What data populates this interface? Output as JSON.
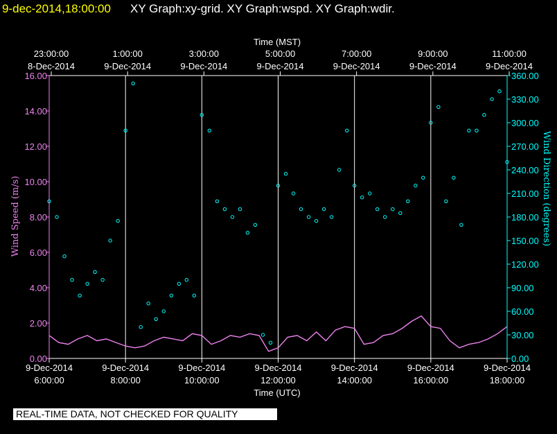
{
  "header": {
    "date": "9-dec-2014,18:00:00",
    "graphs": "XY Graph:xy-grid.  XY Graph:wspd.  XY Graph:wdir."
  },
  "disclaimer": "REAL-TIME DATA, NOT CHECKED FOR QUALITY",
  "chart_data": {
    "type": "scatter",
    "top_axis": {
      "title": "Time (MST)",
      "ticks": [
        {
          "t": "23:00:00",
          "d": "8-Dec-2014"
        },
        {
          "t": "1:00:00",
          "d": "9-Dec-2014"
        },
        {
          "t": "3:00:00",
          "d": "9-Dec-2014"
        },
        {
          "t": "5:00:00",
          "d": "9-Dec-2014"
        },
        {
          "t": "7:00:00",
          "d": "9-Dec-2014"
        },
        {
          "t": "9:00:00",
          "d": "9-Dec-2014"
        },
        {
          "t": "11:00:00",
          "d": "9-Dec-2014"
        }
      ]
    },
    "bottom_axis": {
      "title": "Time (UTC)",
      "ticks": [
        {
          "d": "9-Dec-2014",
          "t": "6:00:00"
        },
        {
          "d": "9-Dec-2014",
          "t": "8:00:00"
        },
        {
          "d": "9-Dec-2014",
          "t": "10:00:00"
        },
        {
          "d": "9-Dec-2014",
          "t": "12:00:00"
        },
        {
          "d": "9-Dec-2014",
          "t": "14:00:00"
        },
        {
          "d": "9-Dec-2014",
          "t": "16:00:00"
        },
        {
          "d": "9-Dec-2014",
          "t": "18:00:00"
        }
      ],
      "xlim_utc_hours": [
        6,
        18
      ]
    },
    "left_axis": {
      "title": "Wind Speed (m/s)",
      "ylim": [
        0,
        16
      ],
      "ticks": [
        "0.00",
        "2.00",
        "4.00",
        "6.00",
        "8.00",
        "10.00",
        "12.00",
        "14.00",
        "16.00"
      ],
      "color": "#ee82ee"
    },
    "right_axis": {
      "title": "Wind Direction (degrees)",
      "ylim": [
        0,
        360
      ],
      "ticks": [
        "0.00",
        "30.00",
        "60.00",
        "90.00",
        "120.00",
        "150.00",
        "180.00",
        "210.00",
        "240.00",
        "270.00",
        "300.00",
        "330.00",
        "360.00"
      ],
      "color": "#00ffff"
    },
    "grid": true,
    "series": [
      {
        "name": "wspd",
        "style": "line",
        "color": "#ee82ee",
        "x": [
          6.0,
          6.25,
          6.5,
          6.75,
          7.0,
          7.25,
          7.5,
          7.75,
          8.0,
          8.25,
          8.5,
          8.75,
          9.0,
          9.25,
          9.5,
          9.75,
          10.0,
          10.25,
          10.5,
          10.75,
          11.0,
          11.25,
          11.5,
          11.75,
          12.0,
          12.25,
          12.5,
          12.75,
          13.0,
          13.25,
          13.5,
          13.75,
          14.0,
          14.25,
          14.5,
          14.75,
          15.0,
          15.25,
          15.5,
          15.75,
          16.0,
          16.25,
          16.5,
          16.75,
          17.0,
          17.25,
          17.5,
          17.75,
          18.0
        ],
        "y": [
          1.3,
          0.9,
          0.8,
          1.1,
          1.3,
          1.0,
          1.1,
          0.9,
          0.7,
          0.6,
          0.7,
          1.0,
          1.2,
          1.1,
          1.0,
          1.4,
          1.3,
          0.8,
          1.0,
          1.3,
          1.2,
          1.4,
          1.3,
          0.4,
          0.6,
          1.2,
          1.3,
          1.0,
          1.5,
          1.0,
          1.6,
          1.8,
          1.7,
          0.8,
          0.9,
          1.3,
          1.4,
          1.7,
          2.1,
          2.4,
          1.8,
          1.7,
          1.0,
          0.6,
          0.8,
          0.9,
          1.1,
          1.4,
          1.8
        ]
      },
      {
        "name": "wdir",
        "style": "points",
        "color": "#00ffff",
        "x": [
          6.0,
          6.2,
          6.4,
          6.6,
          6.8,
          7.0,
          7.2,
          7.4,
          7.6,
          7.8,
          8.0,
          8.2,
          8.4,
          8.6,
          8.8,
          9.0,
          9.2,
          9.4,
          9.6,
          9.8,
          10.0,
          10.2,
          10.4,
          10.6,
          10.8,
          11.0,
          11.2,
          11.4,
          11.6,
          11.8,
          12.0,
          12.2,
          12.4,
          12.6,
          12.8,
          13.0,
          13.2,
          13.4,
          13.6,
          13.8,
          14.0,
          14.2,
          14.4,
          14.6,
          14.8,
          15.0,
          15.2,
          15.4,
          15.6,
          15.8,
          16.0,
          16.2,
          16.4,
          16.6,
          16.8,
          17.0,
          17.2,
          17.4,
          17.6,
          17.8,
          18.0
        ],
        "y": [
          200,
          180,
          130,
          100,
          80,
          95,
          110,
          100,
          150,
          175,
          290,
          350,
          40,
          70,
          50,
          60,
          80,
          95,
          100,
          80,
          310,
          290,
          200,
          190,
          180,
          190,
          160,
          170,
          30,
          20,
          220,
          235,
          210,
          190,
          180,
          175,
          190,
          180,
          240,
          290,
          220,
          205,
          210,
          190,
          180,
          190,
          185,
          200,
          220,
          230,
          300,
          320,
          200,
          230,
          170,
          290,
          290,
          310,
          330,
          340,
          250
        ]
      }
    ]
  }
}
